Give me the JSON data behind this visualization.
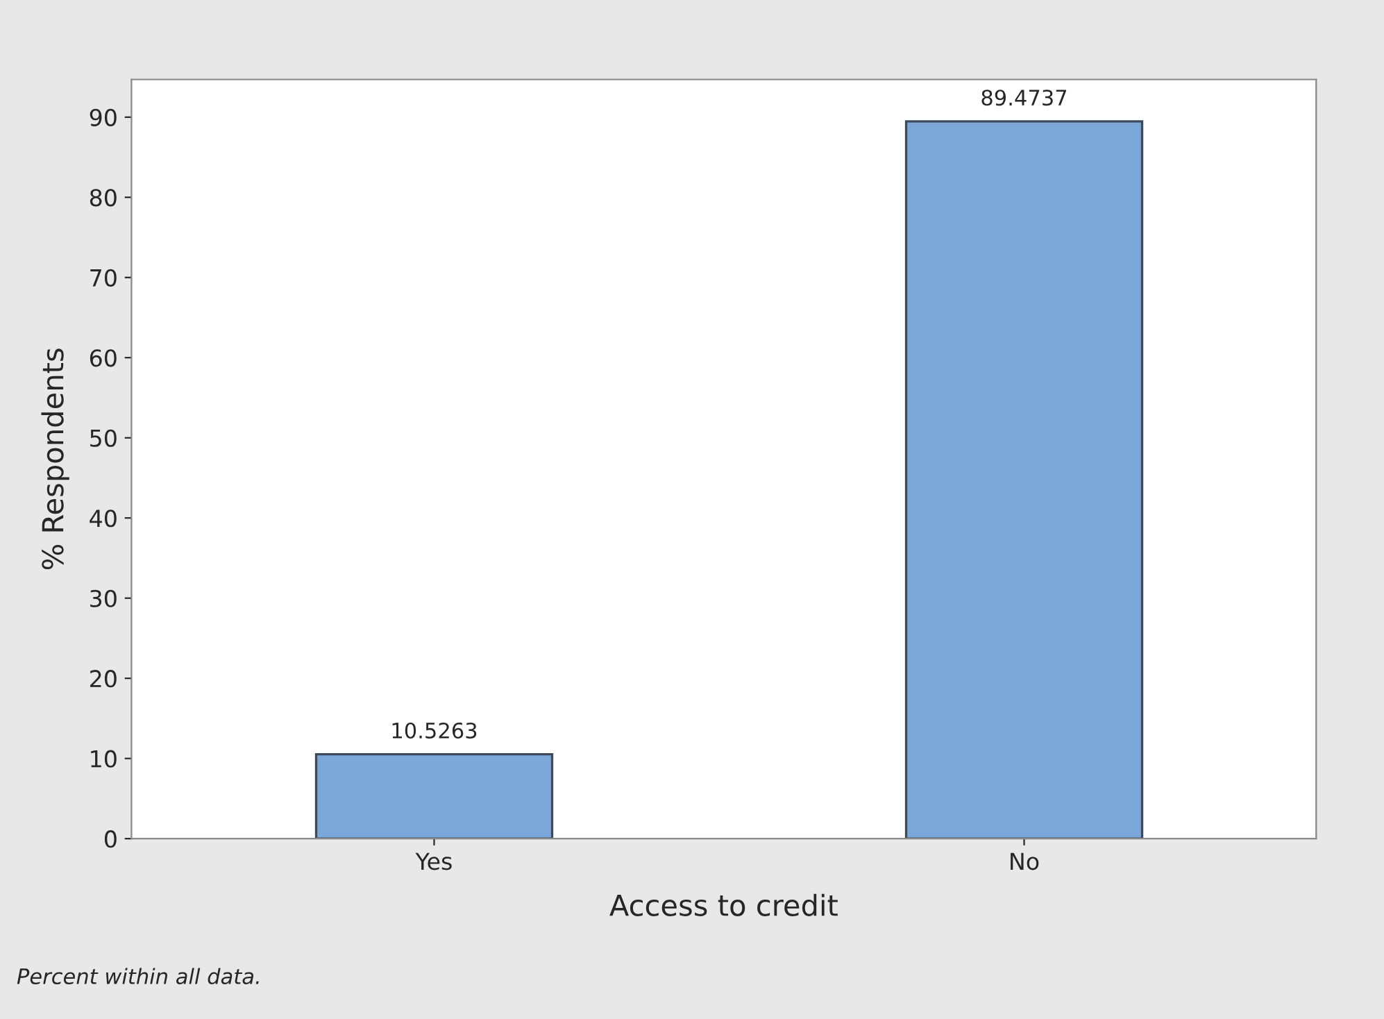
{
  "chart_data": {
    "type": "bar",
    "xlabel": "Access to credit",
    "ylabel": "% Respondents",
    "categories": [
      "Yes",
      "No"
    ],
    "values": [
      10.5263,
      89.4737
    ],
    "color": "#7ba7d9",
    "ylim": [
      0,
      94.7
    ],
    "yticks": [
      0,
      10,
      20,
      30,
      40,
      50,
      60,
      70,
      80,
      90
    ],
    "grid": false,
    "data_labels": true,
    "annotations": [
      "Percent within all data."
    ]
  }
}
